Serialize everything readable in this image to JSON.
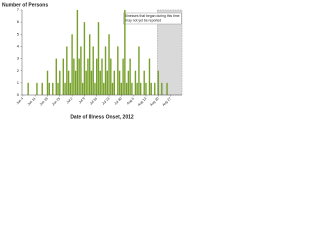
{
  "chart_data": {
    "type": "bar",
    "title": "Number of Persons",
    "x_label": "Date of Illness Onset, 2012",
    "annotation": {
      "lines": [
        "Illnesses that began during this time",
        "may not yet be reported"
      ],
      "shade_from": "Aug 20"
    },
    "categories": [
      "Jun 4",
      null,
      null,
      null,
      null,
      null,
      null,
      "Jun 11",
      null,
      null,
      null,
      null,
      null,
      null,
      "Jun 18",
      null,
      null,
      null,
      null,
      null,
      null,
      "Jun 25",
      null,
      null,
      null,
      null,
      null,
      null,
      "Jul 2",
      null,
      null,
      null,
      null,
      null,
      null,
      "Jul 9",
      null,
      null,
      null,
      null,
      null,
      null,
      "Jul 16",
      null,
      null,
      null,
      null,
      null,
      null,
      "Jul 23",
      null,
      null,
      null,
      null,
      null,
      null,
      "Jul 30",
      null,
      null,
      null,
      null,
      null,
      null,
      "Aug 6",
      null,
      null,
      null,
      null,
      null,
      null,
      "Aug 13",
      null,
      null,
      null,
      null,
      null,
      null,
      "Aug 20",
      null,
      null,
      null,
      null,
      null,
      null,
      "Aug 27",
      null,
      null,
      null,
      null,
      null,
      null
    ],
    "values": [
      0,
      0,
      0,
      1,
      0,
      0,
      0,
      0,
      1,
      0,
      0,
      1,
      0,
      0,
      2,
      1,
      0,
      1,
      0,
      3,
      1,
      2,
      0,
      3,
      1,
      4,
      2,
      1,
      5,
      3,
      2,
      7,
      3,
      4,
      1,
      6,
      2,
      3,
      5,
      2,
      4,
      1,
      3,
      6,
      2,
      3,
      1,
      4,
      2,
      5,
      3,
      1,
      2,
      0,
      4,
      2,
      1,
      3,
      7,
      1,
      2,
      3,
      1,
      0,
      2,
      1,
      4,
      1,
      0,
      2,
      1,
      0,
      3,
      1,
      0,
      1,
      0,
      2,
      0,
      1,
      0,
      0,
      1,
      0,
      0,
      0,
      0,
      0,
      0,
      0,
      0
    ],
    "color": "#76a02a",
    "ylim": [
      0,
      7
    ],
    "yticks": [
      0,
      1,
      2,
      3,
      4,
      5,
      6,
      7
    ],
    "grid": false
  }
}
